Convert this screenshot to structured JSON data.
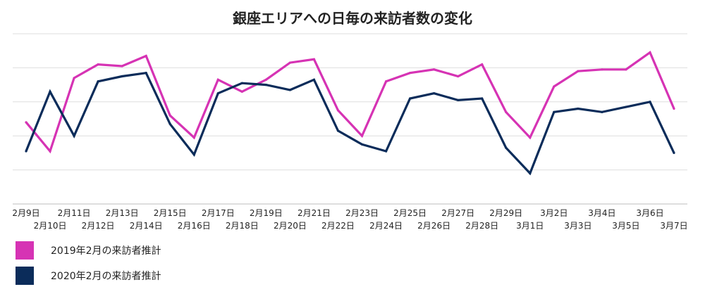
{
  "chart_data": {
    "type": "line",
    "title": "銀座エリアへの日毎の来訪者数の変化",
    "xlabel": "",
    "ylabel": "",
    "grid": true,
    "legend_position": "bottom-left",
    "ylim": [
      0,
      100
    ],
    "categories": [
      "2月9日",
      "2月10日",
      "2月11日",
      "2月12日",
      "2月13日",
      "2月14日",
      "2月15日",
      "2月16日",
      "2月17日",
      "2月18日",
      "2月19日",
      "2月20日",
      "2月21日",
      "2月22日",
      "2月23日",
      "2月24日",
      "2月25日",
      "2月26日",
      "2月27日",
      "2月28日",
      "2月29日",
      "3月1日",
      "3月2日",
      "3月3日",
      "3月4日",
      "3月5日",
      "3月6日",
      "3月7日"
    ],
    "series": [
      {
        "name": "2019年2月の来訪者推計",
        "color": "#d633b4",
        "values": [
          48,
          31,
          74,
          82,
          81,
          87,
          52,
          39,
          73,
          66,
          73,
          83,
          85,
          55,
          40,
          72,
          77,
          79,
          75,
          82,
          54,
          39,
          69,
          78,
          79,
          79,
          89,
          56
        ]
      },
      {
        "name": "2020年2月の来訪者推計",
        "color": "#0b2c5a",
        "values": [
          31,
          66,
          40,
          72,
          75,
          77,
          47,
          29,
          65,
          71,
          70,
          67,
          73,
          43,
          35,
          31,
          62,
          65,
          61,
          62,
          33,
          18,
          54,
          56,
          54,
          57,
          60,
          30
        ]
      }
    ]
  }
}
